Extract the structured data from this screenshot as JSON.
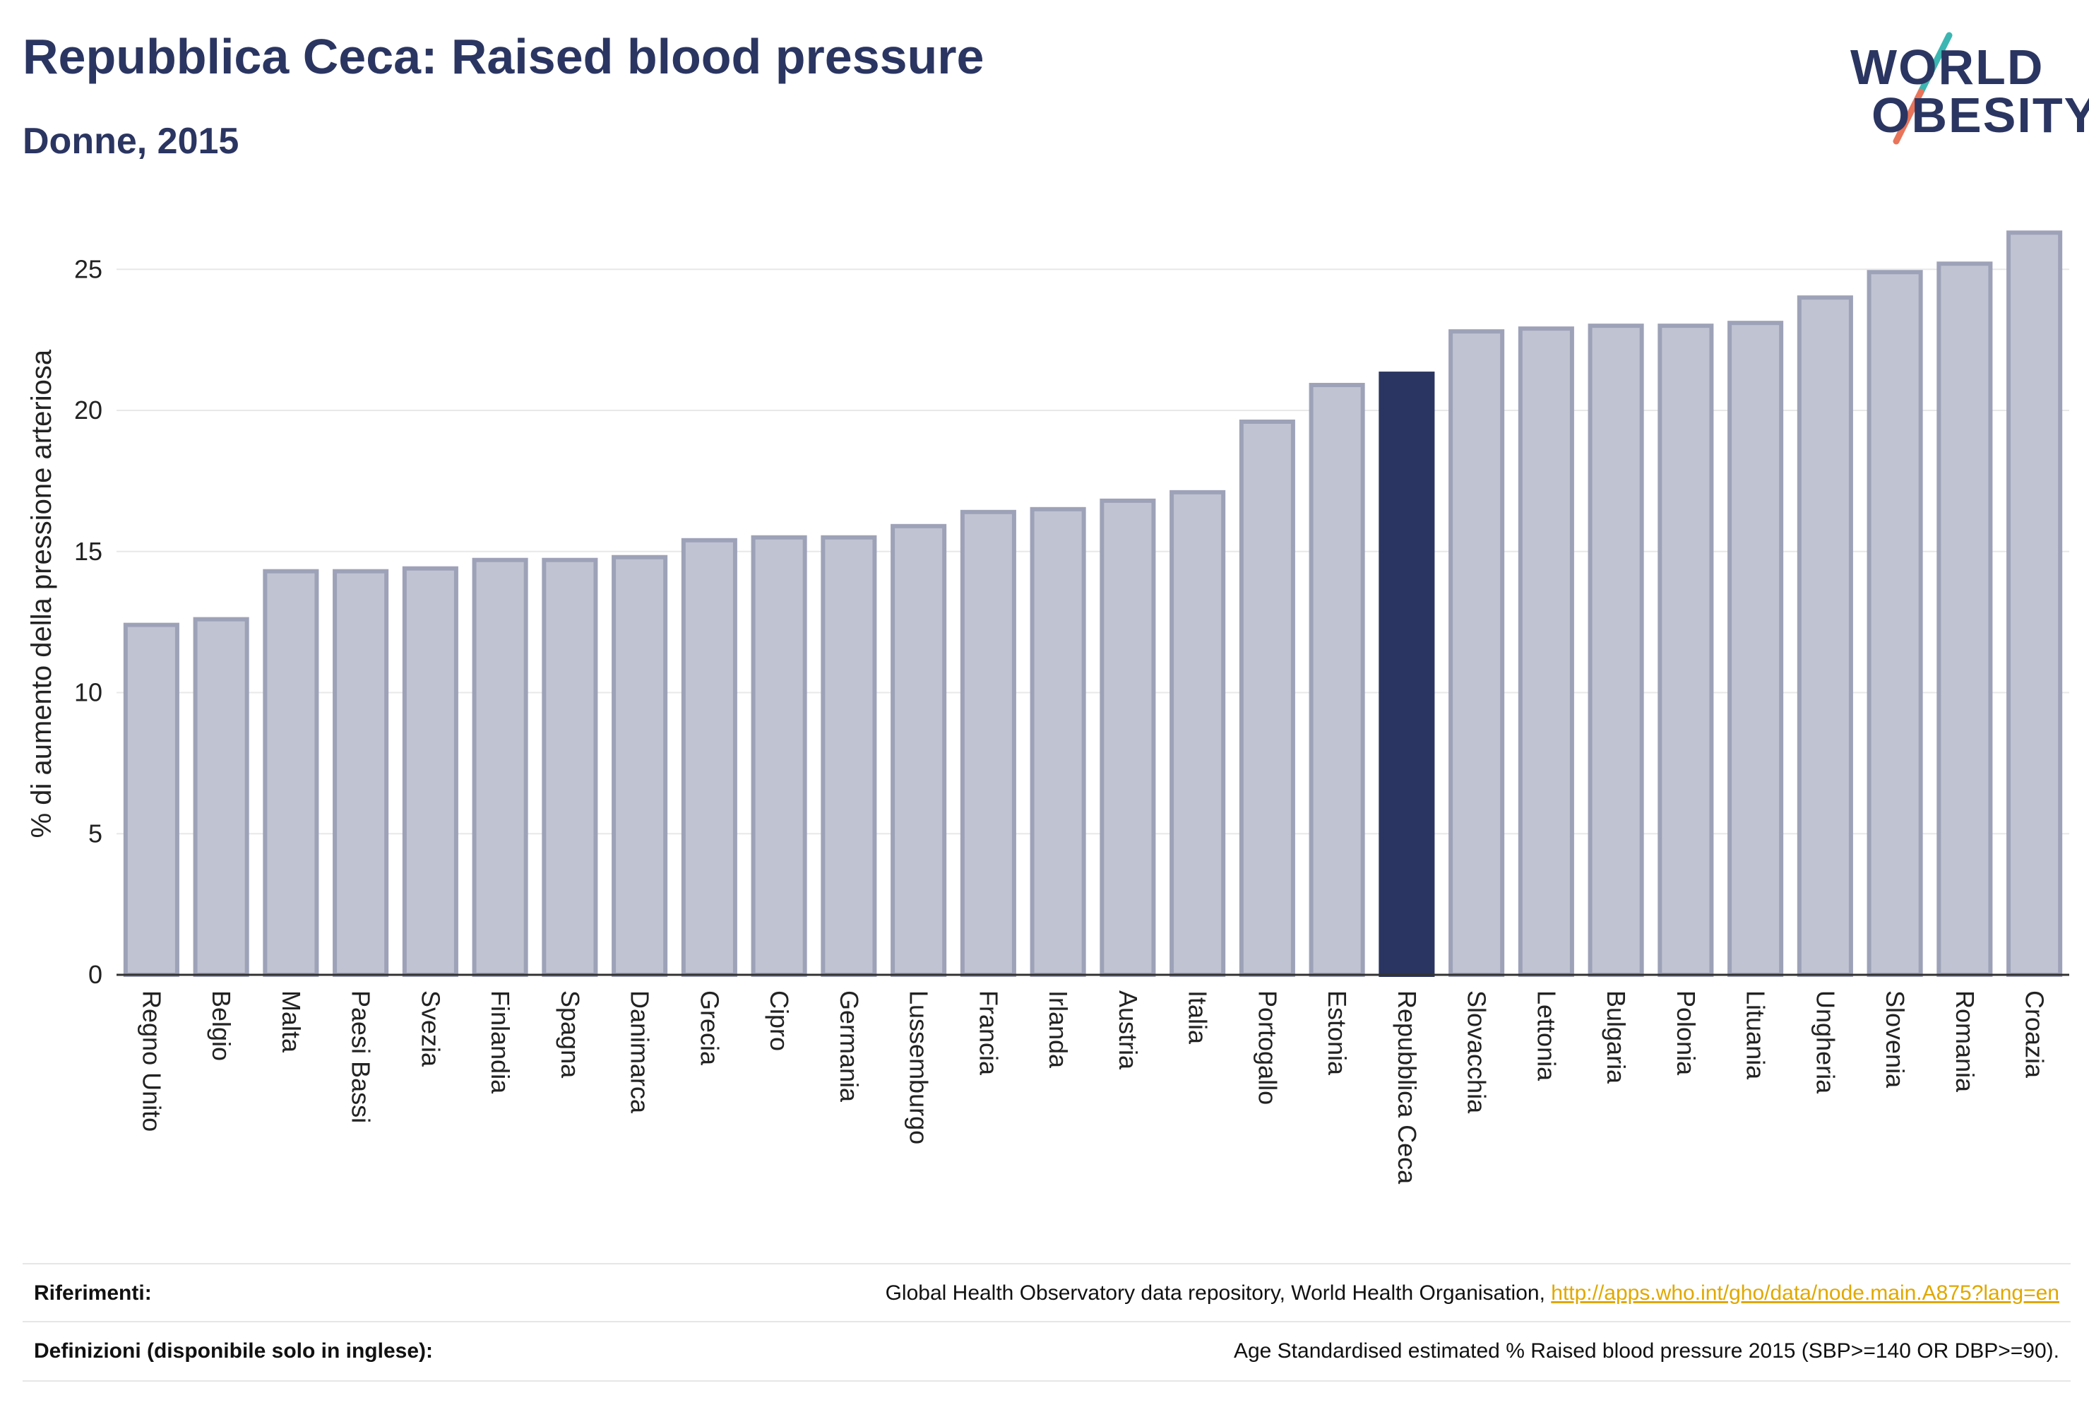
{
  "header": {
    "title": "Repubblica Ceca: Raised blood pressure",
    "subtitle": "Donne, 2015"
  },
  "logo": {
    "line1": "WORLD",
    "line2": "OBESITY"
  },
  "chart_data": {
    "type": "bar",
    "title": "Repubblica Ceca: Raised blood pressure",
    "subtitle": "Donne, 2015",
    "ylabel": "% di aumento della pressione arteriosa",
    "xlabel": "",
    "ylim": [
      0,
      27
    ],
    "yticks": [
      0,
      5,
      10,
      15,
      20,
      25
    ],
    "grid": true,
    "highlight": "Repubblica Ceca",
    "colors": {
      "bar": "#c0c3d1",
      "bar_border": "#9ea2b8",
      "highlight": "#2b3561",
      "grid": "#e8e8e8",
      "axis": "#333333"
    },
    "categories": [
      "Regno Unito",
      "Belgio",
      "Malta",
      "Paesi Bassi",
      "Svezia",
      "Finlandia",
      "Spagna",
      "Danimarca",
      "Grecia",
      "Cipro",
      "Germania",
      "Lussemburgo",
      "Francia",
      "Irlanda",
      "Austria",
      "Italia",
      "Portogallo",
      "Estonia",
      "Repubblica Ceca",
      "Slovacchia",
      "Lettonia",
      "Bulgaria",
      "Polonia",
      "Lituania",
      "Ungheria",
      "Slovenia",
      "Romania",
      "Croazia"
    ],
    "values": [
      12.4,
      12.6,
      14.3,
      14.3,
      14.4,
      14.7,
      14.7,
      14.8,
      15.4,
      15.5,
      15.5,
      15.9,
      16.4,
      16.5,
      16.8,
      17.1,
      19.6,
      20.9,
      21.3,
      22.8,
      22.9,
      23.0,
      23.0,
      23.1,
      24.0,
      24.9,
      25.2,
      26.3
    ]
  },
  "footer": {
    "references_label": "Riferimenti:",
    "references_text": "Global Health Observatory data repository, World Health Organisation, ",
    "references_link": "http://apps.who.int/gho/data/node.main.A875?lang=en",
    "definitions_label": "Definizioni (disponibile solo in inglese):",
    "definitions_text": "Age Standardised estimated % Raised blood pressure 2015 (SBP>=140 OR DBP>=90)."
  }
}
